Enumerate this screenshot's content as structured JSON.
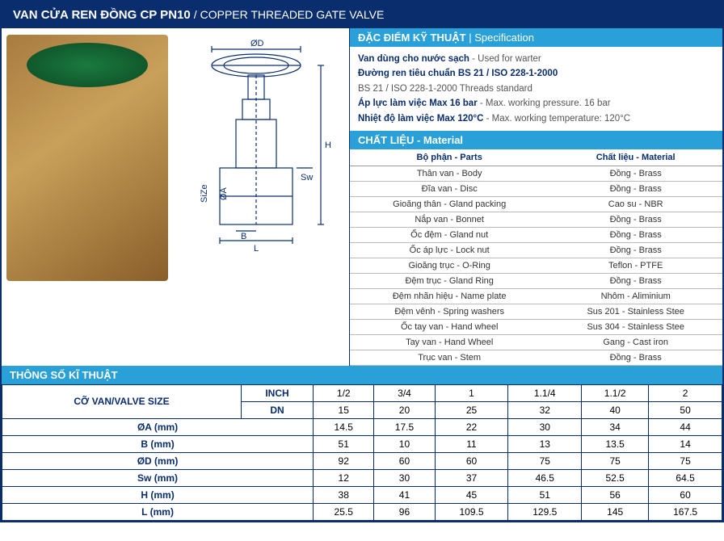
{
  "title": {
    "vn": "VAN CỬA REN ĐỒNG CP PN10",
    "sep": "/",
    "en": "COPPER THREADED GATE VALVE"
  },
  "spec_header": {
    "vn": "ĐẶC ĐIỂM KỸ THUẬT",
    "en": "Specification",
    "sep": " | "
  },
  "spec_lines": [
    {
      "vn": "Van dùng cho nước sạch",
      "en": " - Used for warter"
    },
    {
      "vn": "Đường ren tiêu chuẩn BS 21 / ISO 228-1-2000",
      "en": ""
    },
    {
      "vn": "",
      "en": "BS 21 / ISO 228-1-2000 Threads standard"
    },
    {
      "vn": "Áp lực làm việc Max 16 bar",
      "en": " - Max. working pressure. 16 bar"
    },
    {
      "vn": "Nhiệt độ làm việc Max 120°C",
      "en": " - Max. working temperature: 120°C"
    }
  ],
  "material_header": {
    "vn": "CHẤT LIỆU",
    "sep": " - ",
    "en": "Material"
  },
  "material_table": {
    "columns": [
      "Bộ phận - Parts",
      "Chất liệu - Material"
    ],
    "rows": [
      [
        "Thân van - Body",
        "Đồng - Brass"
      ],
      [
        "Đĩa van - Disc",
        "Đồng - Brass"
      ],
      [
        "Gioăng thân - Gland packing",
        "Cao su - NBR"
      ],
      [
        "Nắp van - Bonnet",
        "Đồng - Brass"
      ],
      [
        "Ốc đệm - Gland nut",
        "Đồng - Brass"
      ],
      [
        "Ốc áp lực - Lock nut",
        "Đồng - Brass"
      ],
      [
        "Gioăng trục - O-Ring",
        "Teflon - PTFE"
      ],
      [
        "Đệm trục - Gland Ring",
        "Đồng - Brass"
      ],
      [
        "Đệm nhãn hiệu - Name plate",
        "Nhôm - Aliminium"
      ],
      [
        "Đệm vênh - Spring washers",
        "Sus 201 - Stainless Stee"
      ],
      [
        "Ốc tay van - Hand wheel",
        "Sus 304 - Stainless Stee"
      ],
      [
        "Tay van - Hand Wheel",
        "Gang - Cast iron"
      ],
      [
        "Trục van - Stem",
        "Đồng - Brass"
      ]
    ]
  },
  "size_header": "THÔNG SỐ KĨ THUẬT",
  "size_table": {
    "valve_size_label": "CỠ VAN/VALVE SIZE",
    "inch_label": "INCH",
    "dn_label": "DN",
    "inch": [
      "1/2",
      "3/4",
      "1",
      "1.1/4",
      "1.1/2",
      "2"
    ],
    "dn": [
      "15",
      "20",
      "25",
      "32",
      "40",
      "50"
    ],
    "rows": [
      {
        "label": "ØA (mm)",
        "values": [
          "14.5",
          "17.5",
          "22",
          "30",
          "34",
          "44"
        ]
      },
      {
        "label": "B (mm)",
        "values": [
          "51",
          "10",
          "11",
          "13",
          "13.5",
          "14"
        ]
      },
      {
        "label": "ØD (mm)",
        "values": [
          "92",
          "60",
          "60",
          "75",
          "75",
          "75"
        ]
      },
      {
        "label": "Sw (mm)",
        "values": [
          "12",
          "30",
          "37",
          "46.5",
          "52.5",
          "64.5"
        ]
      },
      {
        "label": "H (mm)",
        "values": [
          "38",
          "41",
          "45",
          "51",
          "56",
          "60"
        ]
      },
      {
        "label": "L (mm)",
        "values": [
          "25.5",
          "96",
          "109.5",
          "129.5",
          "145",
          "167.5"
        ]
      }
    ]
  },
  "drawing_labels": {
    "OD": "ØD",
    "H": "H",
    "Sw": "Sw",
    "OA": "ØA",
    "Size": "SiZe",
    "B": "B",
    "L": "L"
  },
  "colors": {
    "primary": "#0a2d6e",
    "accent": "#29a0d8",
    "brass1": "#a87b3f",
    "brass2": "#c9a05a",
    "wheel": "#1a7a3e"
  }
}
